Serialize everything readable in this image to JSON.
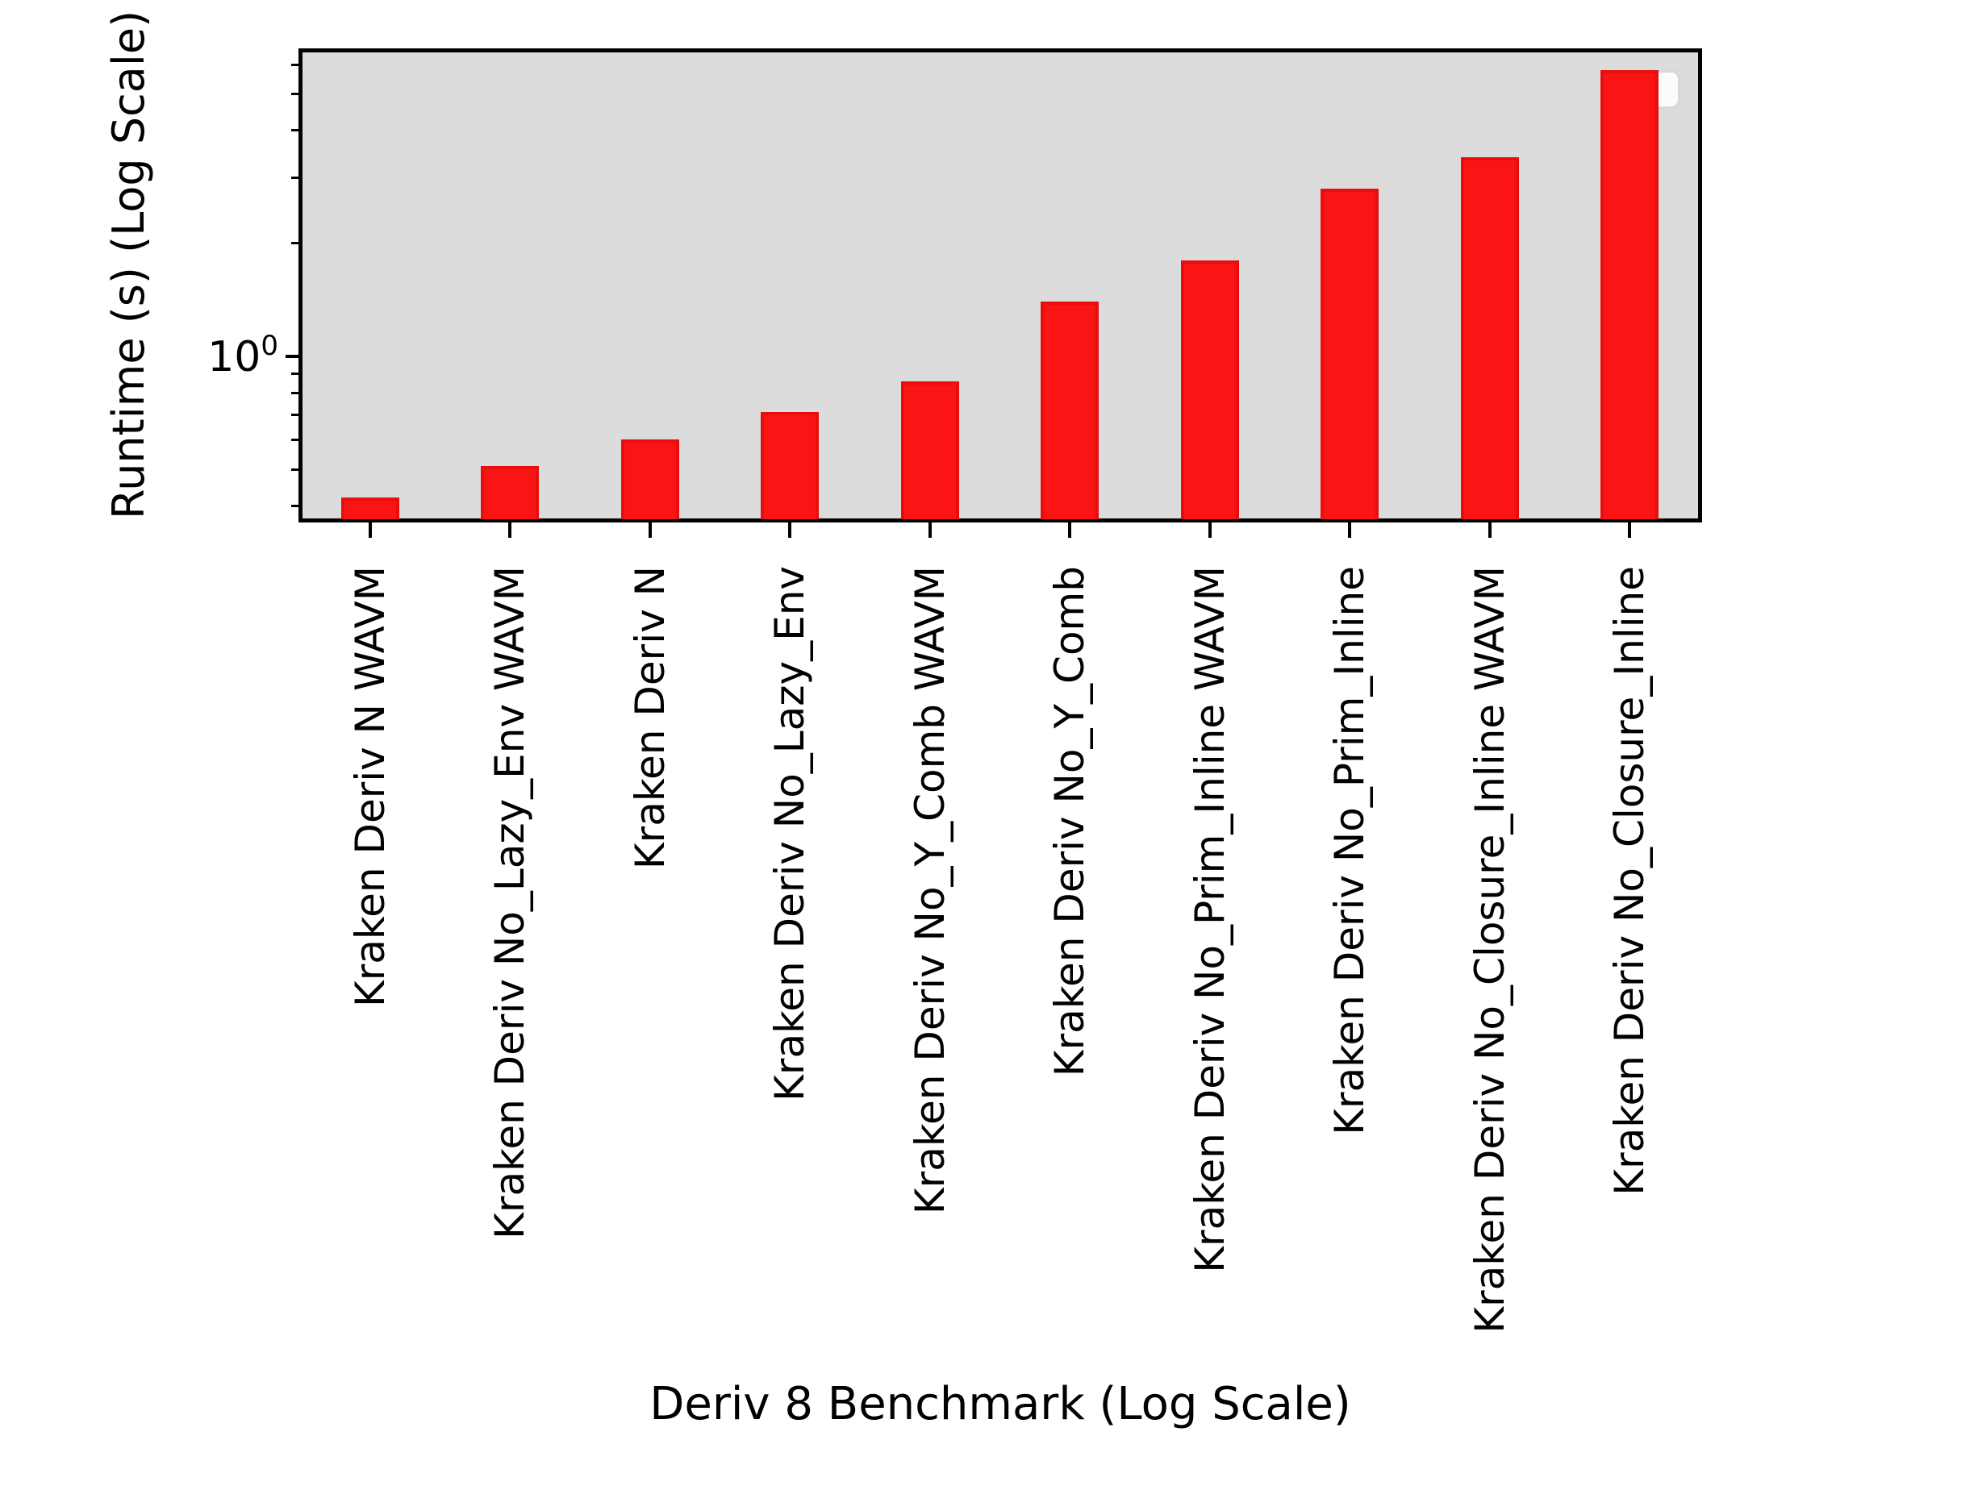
{
  "chart_data": {
    "type": "bar",
    "title": "",
    "xlabel": "Deriv 8 Benchmark (Log Scale)",
    "ylabel": "Runtime (s) (Log Scale)",
    "categories": [
      "Kraken Deriv N WAVM",
      "Kraken Deriv No_Lazy_Env WAVM",
      "Kraken Deriv N",
      "Kraken Deriv No_Lazy_Env",
      "Kraken Deriv No_Y_Comb WAVM",
      "Kraken Deriv No_Y_Comb",
      "Kraken Deriv No_Prim_Inline WAVM",
      "Kraken Deriv No_Prim_Inline",
      "Kraken Deriv No_Closure_Inline WAVM",
      "Kraken Deriv No_Closure_Inline"
    ],
    "values": [
      0.42,
      0.51,
      0.6,
      0.71,
      0.86,
      1.4,
      1.8,
      2.8,
      3.4,
      5.8
    ],
    "unit": "s",
    "yscale": "log",
    "ylim": [
      0.368,
      6.56
    ],
    "y_major_tick": {
      "value": 1,
      "label_base": "10",
      "label_exp": "0"
    },
    "y_minor_ticks": [
      0.4,
      0.5,
      0.6,
      0.7,
      0.8,
      0.9,
      2,
      3,
      4,
      5,
      6
    ],
    "grid": false,
    "legend": {
      "visible": true,
      "entries": [],
      "position": "upper right"
    },
    "colors": {
      "bar_fill": "#fa1414",
      "bar_edge": "#e90e0e",
      "plot_background": "#dcdcdc",
      "figure_background": "#ffffff",
      "axis": "#000000"
    }
  }
}
